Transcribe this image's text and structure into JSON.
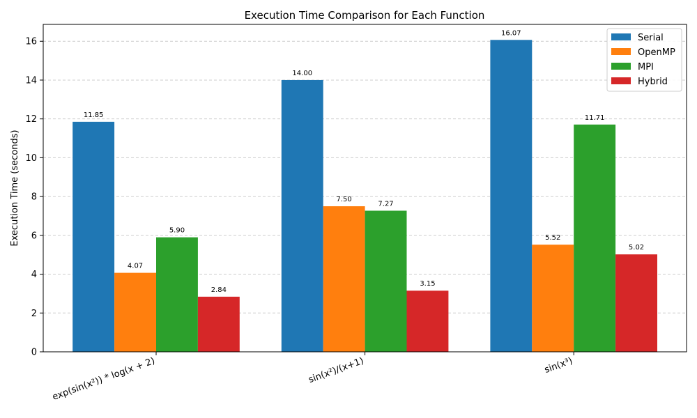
{
  "chart_data": {
    "type": "bar",
    "title": "Execution Time Comparison for Each Function",
    "xlabel": "",
    "ylabel": "Execution Time (seconds)",
    "categories": [
      "exp(sin(x²)) * log(x + 2)",
      "sin(x²)/(x+1)",
      "sin(x³)"
    ],
    "series": [
      {
        "name": "Serial",
        "color": "#1f77b4",
        "values": [
          11.85,
          14.0,
          16.07
        ]
      },
      {
        "name": "OpenMP",
        "color": "#ff7f0e",
        "values": [
          4.07,
          7.5,
          5.52
        ]
      },
      {
        "name": "MPI",
        "color": "#2ca02c",
        "values": [
          5.9,
          7.27,
          11.71
        ]
      },
      {
        "name": "Hybrid",
        "color": "#d62728",
        "values": [
          2.84,
          3.15,
          5.02
        ]
      }
    ],
    "ylim": [
      0,
      16.87
    ],
    "yticks": [
      0,
      2,
      4,
      6,
      8,
      10,
      12,
      14,
      16
    ],
    "grid": "y-dashed",
    "legend_position": "top-right",
    "value_label_format": "2-decimals"
  }
}
